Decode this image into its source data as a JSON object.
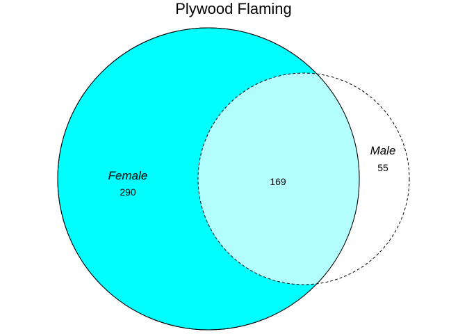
{
  "chart_data": {
    "type": "venn",
    "title": "Plywood Flaming",
    "sets": [
      {
        "name": "Female",
        "only_count": "290",
        "color": "#00FFFF",
        "border": "solid"
      },
      {
        "name": "Male",
        "only_count": "55",
        "color": "#FFFFFF",
        "border": "dashed"
      }
    ],
    "intersection": {
      "sets": [
        "Female",
        "Male"
      ],
      "count": "169",
      "color": "#B3FFFF"
    }
  }
}
